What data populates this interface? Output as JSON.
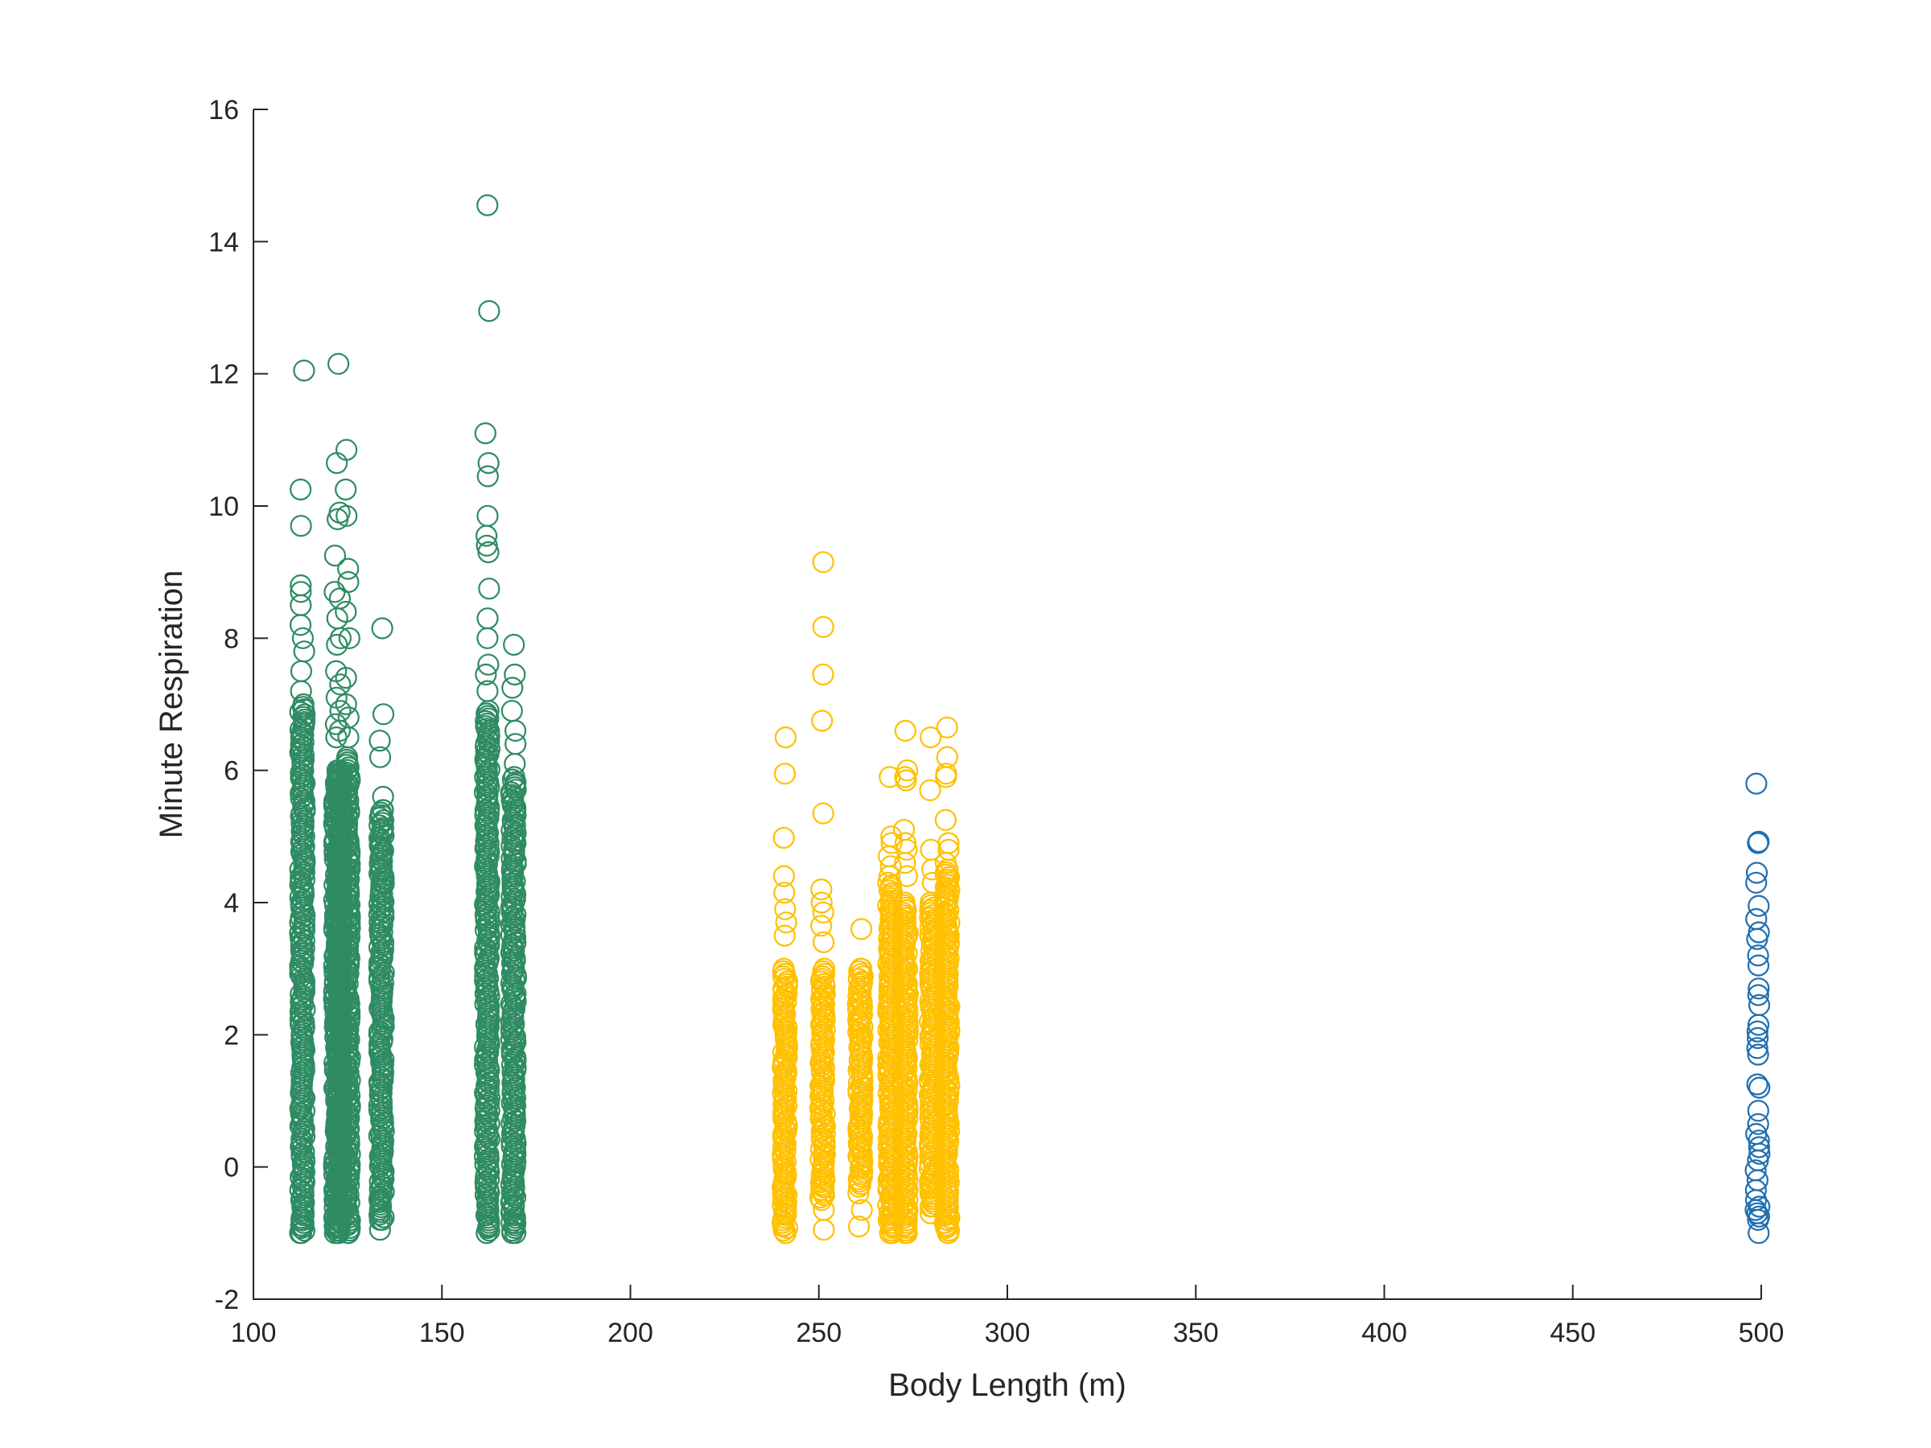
{
  "chart_data": {
    "type": "scatter",
    "title": "",
    "xlabel": "Body Length (m)",
    "ylabel": "Minute Respiration",
    "xlim": [
      100,
      500
    ],
    "ylim": [
      -2,
      16
    ],
    "xticks": [
      100,
      150,
      200,
      250,
      300,
      350,
      400,
      450,
      500
    ],
    "yticks": [
      -2,
      0,
      2,
      4,
      6,
      8,
      10,
      12,
      14,
      16
    ],
    "grid": false,
    "legend": "none",
    "marker": "open-circle",
    "series": [
      {
        "color": "#2e8b62",
        "columns": [
          {
            "x": 113,
            "dense_range": [
              -1.0,
              7.0
            ],
            "values": [
              12.05,
              10.25,
              9.7,
              8.8,
              8.7,
              8.5,
              8.2,
              8.0,
              7.8,
              7.5,
              7.2,
              -1.0,
              -0.9,
              -0.8,
              -0.6
            ]
          },
          {
            "x": 122,
            "dense_range": [
              -1.0,
              6.0
            ],
            "values": [
              10.65,
              9.8,
              9.25,
              8.7,
              8.3,
              7.9,
              7.5,
              7.1,
              6.7,
              6.5,
              -1.0,
              -0.9
            ]
          },
          {
            "x": 123,
            "dense_range": [
              -1.0,
              6.0
            ],
            "values": [
              12.15,
              9.9,
              8.6,
              8.0,
              7.3,
              6.9,
              6.6
            ]
          },
          {
            "x": 125,
            "dense_range": [
              -1.0,
              6.2
            ],
            "values": [
              10.85,
              10.25,
              9.85,
              9.05,
              8.85,
              8.4,
              8.0,
              7.4,
              7.0,
              6.8,
              6.5,
              -1.0
            ]
          },
          {
            "x": 134,
            "dense_range": [
              -0.8,
              5.4
            ],
            "values": [
              8.15,
              6.85,
              6.45,
              6.2,
              5.6,
              5.4,
              5.1,
              4.85,
              4.5,
              4.3,
              0.2,
              -0.3,
              -0.5,
              -0.8,
              -0.95
            ]
          },
          {
            "x": 162,
            "dense_range": [
              -1.0,
              6.9
            ],
            "values": [
              14.55,
              12.95,
              11.1,
              10.65,
              10.45,
              9.85,
              9.55,
              9.4,
              9.3,
              8.75,
              8.3,
              8.0,
              7.6,
              7.45,
              7.2,
              -1.0,
              -0.9,
              -0.7
            ]
          },
          {
            "x": 169,
            "dense_range": [
              -1.0,
              5.9
            ],
            "values": [
              7.9,
              7.45,
              7.25,
              6.9,
              6.6,
              6.4,
              6.1,
              -1.0,
              -0.85,
              -0.6,
              -0.2
            ]
          }
        ]
      },
      {
        "color": "#ffc000",
        "columns": [
          {
            "x": 241,
            "dense_range": [
              -1.0,
              3.0
            ],
            "values": [
              6.5,
              5.95,
              4.98,
              4.4,
              4.15,
              3.9,
              3.7,
              3.5,
              -0.4,
              -0.7,
              -0.9,
              -1.0
            ]
          },
          {
            "x": 251,
            "dense_range": [
              -0.5,
              3.0
            ],
            "values": [
              9.15,
              8.17,
              7.45,
              6.75,
              5.35,
              4.2,
              4.0,
              3.85,
              3.65,
              3.4,
              -0.3,
              -0.65,
              -0.95
            ]
          },
          {
            "x": 261,
            "dense_range": [
              -0.3,
              3.0
            ],
            "values": [
              3.6,
              3.0,
              2.8,
              2.5,
              2.2,
              1.5,
              0.9,
              0.3,
              -0.4,
              -0.65,
              -0.9
            ]
          },
          {
            "x": 269,
            "dense_range": [
              -1.0,
              4.3
            ],
            "values": [
              5.9,
              5.0,
              4.9,
              4.7,
              4.55,
              4.4,
              -1.0,
              -0.9,
              -0.8,
              -0.6
            ]
          },
          {
            "x": 273,
            "dense_range": [
              -1.0,
              4.0
            ],
            "values": [
              6.6,
              6.0,
              5.9,
              5.85,
              5.1,
              4.9,
              4.8,
              4.6,
              4.4,
              -1.0,
              -0.9
            ]
          },
          {
            "x": 280,
            "dense_range": [
              -0.6,
              4.0
            ],
            "values": [
              6.5,
              5.7,
              4.8,
              4.5,
              4.3,
              -0.6,
              -0.7
            ]
          },
          {
            "x": 284,
            "dense_range": [
              -1.0,
              4.5
            ],
            "values": [
              6.65,
              6.2,
              5.95,
              5.9,
              5.25,
              4.9,
              4.8,
              4.6,
              -1.0,
              -0.9,
              -0.8
            ]
          }
        ]
      },
      {
        "color": "#1f6fb2",
        "columns": [
          {
            "x": 499,
            "dense_range": null,
            "values": [
              5.8,
              4.92,
              4.9,
              4.45,
              4.3,
              3.95,
              3.75,
              3.55,
              3.45,
              3.2,
              3.05,
              2.7,
              2.6,
              2.45,
              2.15,
              2.05,
              1.95,
              1.8,
              1.7,
              1.25,
              1.2,
              0.85,
              0.65,
              0.5,
              0.4,
              0.3,
              0.2,
              0.1,
              -0.05,
              -0.2,
              -0.35,
              -0.5,
              -0.6,
              -0.65,
              -0.7,
              -0.75,
              -0.8,
              -1.0
            ]
          }
        ]
      }
    ]
  }
}
